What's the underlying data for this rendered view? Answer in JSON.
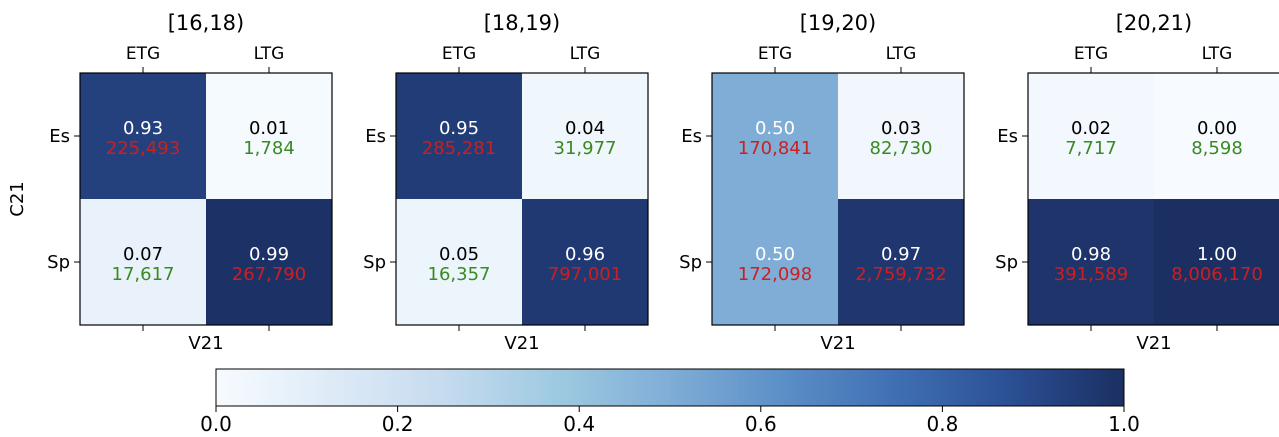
{
  "chart_data": {
    "type": "heatmap",
    "colormap": "Blues",
    "x_categories": [
      "ETG",
      "LTG"
    ],
    "y_categories": [
      "Es",
      "Sp"
    ],
    "shared_xlabel": "V21",
    "shared_ylabel": "C21",
    "panels": [
      {
        "title": "[16,18)",
        "values": [
          [
            0.93,
            0.01
          ],
          [
            0.07,
            0.99
          ]
        ],
        "value_labels": [
          [
            "0.93",
            "0.01"
          ],
          [
            "0.07",
            "0.99"
          ]
        ],
        "counts": [
          [
            "225,493",
            "1,784"
          ],
          [
            "17,617",
            "267,790"
          ]
        ]
      },
      {
        "title": "[18,19)",
        "values": [
          [
            0.95,
            0.04
          ],
          [
            0.05,
            0.96
          ]
        ],
        "value_labels": [
          [
            "0.95",
            "0.04"
          ],
          [
            "0.05",
            "0.96"
          ]
        ],
        "counts": [
          [
            "285,281",
            "31,977"
          ],
          [
            "16,357",
            "797,001"
          ]
        ]
      },
      {
        "title": "[19,20)",
        "values": [
          [
            0.5,
            0.03
          ],
          [
            0.5,
            0.97
          ]
        ],
        "value_labels": [
          [
            "0.50",
            "0.03"
          ],
          [
            "0.50",
            "0.97"
          ]
        ],
        "counts": [
          [
            "170,841",
            "82,730"
          ],
          [
            "172,098",
            "2,759,732"
          ]
        ]
      },
      {
        "title": "[20,21)",
        "values": [
          [
            0.02,
            0.0
          ],
          [
            0.98,
            1.0
          ]
        ],
        "value_labels": [
          [
            "0.02",
            "0.00"
          ],
          [
            "0.98",
            "1.00"
          ]
        ],
        "counts": [
          [
            "7,717",
            "8,598"
          ],
          [
            "391,589",
            "8,006,170"
          ]
        ]
      }
    ],
    "colorbar": {
      "range": [
        0.0,
        1.0
      ],
      "ticks": [
        "0.0",
        "0.2",
        "0.4",
        "0.6",
        "0.8",
        "1.0"
      ]
    },
    "colors": {
      "count_on_dark": "#cc1f1f",
      "count_on_light": "#3a8a22",
      "value_on_dark": "#ffffff",
      "value_on_light": "#000000"
    }
  }
}
